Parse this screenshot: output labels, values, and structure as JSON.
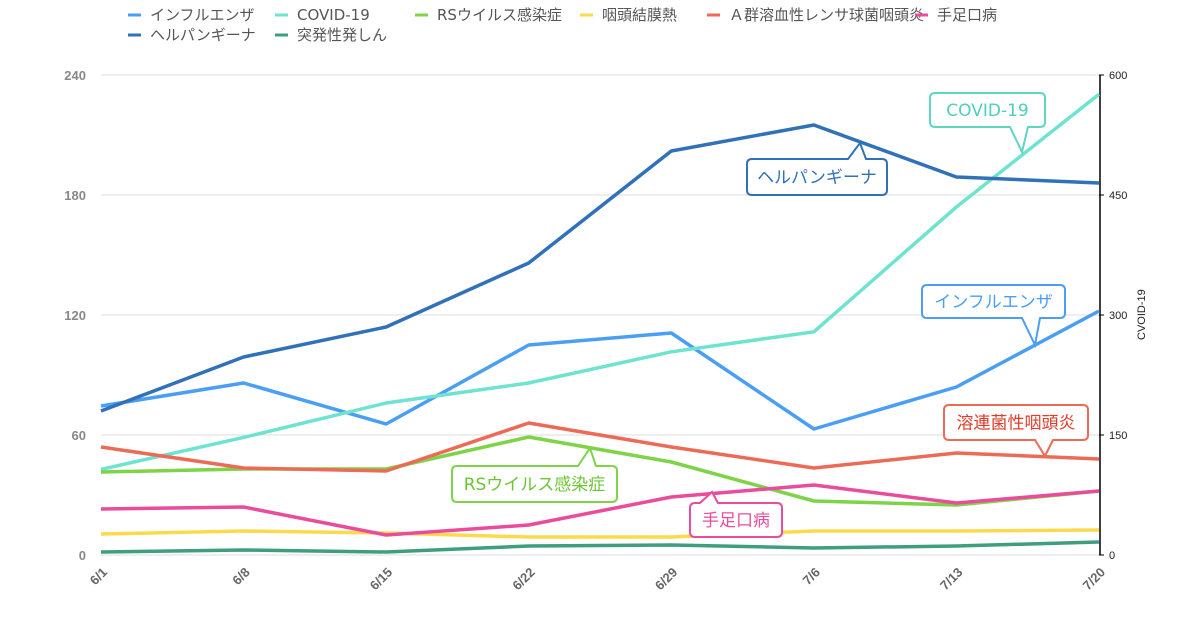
{
  "chart_data": {
    "type": "line",
    "title": "",
    "categories": [
      "6/1",
      "6/8",
      "6/15",
      "6/22",
      "6/29",
      "7/6",
      "7/13",
      "7/20"
    ],
    "ylim": [
      0,
      240
    ],
    "yticks": [
      0,
      60,
      120,
      180,
      240
    ],
    "y2lim": [
      0,
      600
    ],
    "y2ticks": [
      0,
      150,
      300,
      450,
      600
    ],
    "y2label": "CVOID-19",
    "grid": true,
    "legend_position": "top",
    "series": [
      {
        "name": "インフルエンザ",
        "color": "#4a9ff5",
        "axis": "left",
        "values": [
          74.5,
          86,
          65.5,
          105,
          111,
          63,
          84,
          122
        ]
      },
      {
        "name": "COVID-19",
        "color": "#6ee3cf",
        "axis": "right",
        "values": [
          107,
          147,
          190,
          215,
          254,
          279,
          435,
          576
        ]
      },
      {
        "name": "RSウイルス感染症",
        "color": "#7ed348",
        "axis": "left",
        "values": [
          41.5,
          43,
          43,
          59,
          46.5,
          27,
          25,
          32
        ]
      },
      {
        "name": "咽頭結膜熱",
        "color": "#fdd94e",
        "axis": "left",
        "values": [
          10.5,
          12,
          11,
          9,
          9,
          12,
          12,
          12.5
        ]
      },
      {
        "name": "Ａ群溶血性レンサ球菌咽頭炎",
        "color": "#ec6b56",
        "axis": "left",
        "values": [
          54,
          43.5,
          42,
          66,
          54,
          43.5,
          51,
          48
        ]
      },
      {
        "name": "手足口病",
        "color": "#ea4c9c",
        "axis": "left",
        "values": [
          23,
          24,
          10,
          15,
          29,
          35,
          26,
          32
        ]
      },
      {
        "name": "ヘルパンギーナ",
        "color": "#3071b7",
        "axis": "left",
        "values": [
          72,
          99,
          114,
          146,
          202,
          215,
          189,
          186
        ]
      },
      {
        "name": "突発性発しん",
        "color": "#3f9e7e",
        "axis": "left",
        "values": [
          1.5,
          2.5,
          1.5,
          4.5,
          5,
          3.5,
          4.5,
          6.5
        ]
      }
    ],
    "annotations": [
      {
        "text": "COVID-19",
        "color": "#5fd6c2",
        "text_color": "#4fcfba"
      },
      {
        "text": "ヘルパンギーナ",
        "color": "#3071b7",
        "text_color": "#3071b7"
      },
      {
        "text": "インフルエンザ",
        "color": "#4a9ff5",
        "text_color": "#4a9ff5"
      },
      {
        "text": "溶連菌性咽頭炎",
        "color": "#ec6b56",
        "text_color": "#e03c2a"
      },
      {
        "text": "RSウイルス感染症",
        "color": "#7ed348",
        "text_color": "#6cc535"
      },
      {
        "text": "手足口病",
        "color": "#ea4c9c",
        "text_color": "#ea4c9c"
      }
    ]
  }
}
